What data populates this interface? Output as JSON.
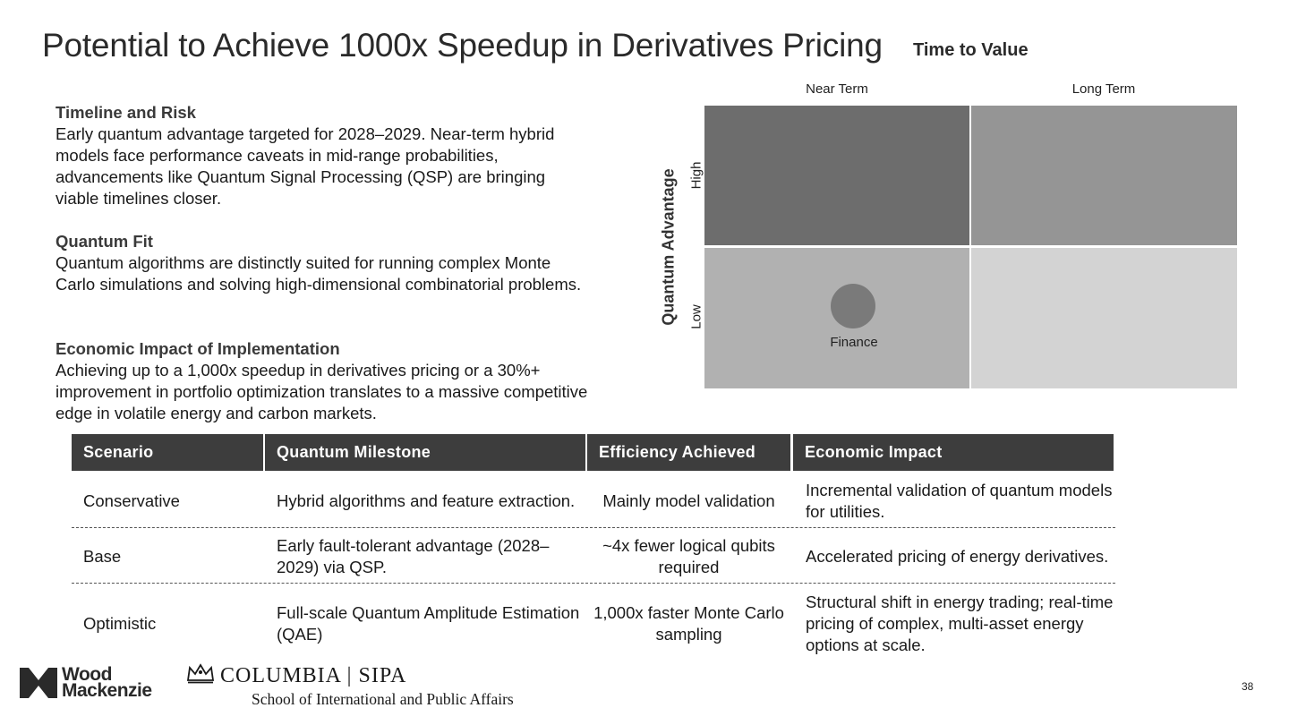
{
  "slide": {
    "title": "Potential to Achieve 1000x Speedup in Derivatives Pricing",
    "page_number": "38"
  },
  "sections": [
    {
      "heading": "Timeline and Risk",
      "body": "Early quantum advantage targeted for 2028–2029. Near-term hybrid models face performance caveats in mid-range probabilities, advancements like Quantum Signal Processing (QSP) are bringing viable timelines closer."
    },
    {
      "heading": "Quantum Fit",
      "body": "Quantum algorithms are distinctly suited for running complex Monte Carlo simulations and solving high-dimensional combinatorial problems."
    },
    {
      "heading": "Economic Impact of Implementation",
      "body": "Achieving up to a 1,000x speedup in derivatives pricing or a 30%+ improvement in portfolio optimization translates to a massive competitive edge in volatile energy and carbon markets."
    }
  ],
  "matrix": {
    "title": "Time to Value",
    "columns": [
      "Near Term",
      "Long Term"
    ],
    "y_axis_title": "Quantum Advantage",
    "rows": [
      "High",
      "Low"
    ],
    "bubble_label": "Finance",
    "cell_colors": [
      "#6d6d6d",
      "#959595",
      "#b1b1b1",
      "#d3d3d3"
    ]
  },
  "table": {
    "headers": [
      "Scenario",
      "Quantum Milestone",
      "Efficiency Achieved",
      "Economic Impact"
    ],
    "rows": [
      [
        "Conservative",
        "Hybrid algorithms and feature extraction.",
        "Mainly model validation",
        "Incremental validation of quantum models for utilities."
      ],
      [
        "Base",
        "Early fault-tolerant advantage (2028–2029) via QSP.",
        "~4x fewer logical qubits required",
        "Accelerated pricing of energy derivatives."
      ],
      [
        "Optimistic",
        "Full-scale Quantum Amplitude Estimation (QAE)",
        "1,000x faster Monte Carlo sampling",
        "Structural shift in energy trading; real-time pricing of complex, multi-asset energy options at scale."
      ]
    ],
    "header_color": "#3d3d3d"
  },
  "footer": {
    "wm_line1": "Wood",
    "wm_line2": "Mackenzie",
    "columbia_line1": "COLUMBIA | SIPA",
    "columbia_line2": "School of International and Public Affairs"
  }
}
